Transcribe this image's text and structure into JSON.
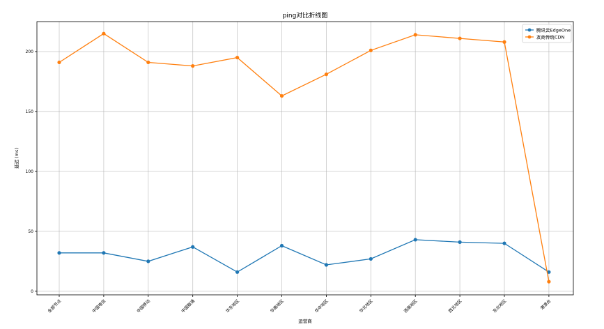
{
  "chart_data": {
    "type": "line",
    "title": "ping对比折线图",
    "xlabel": "运营商",
    "ylabel": "延迟 (ms)",
    "categories": [
      "全部节点",
      "中国电信",
      "中国移动",
      "中国联通",
      "华东地区",
      "华南地区",
      "华中地区",
      "华北地区",
      "西南地区",
      "西北地区",
      "东北地区",
      "港澳台"
    ],
    "series": [
      {
        "name": "腾讯云EdgeOne",
        "color": "#1f77b4",
        "values": [
          32,
          32,
          25,
          37,
          16,
          38,
          22,
          27,
          43,
          41,
          40,
          16
        ]
      },
      {
        "name": "友商传统CDN",
        "color": "#ff7f0e",
        "values": [
          191,
          215,
          191,
          188,
          195,
          163,
          181,
          201,
          214,
          211,
          208,
          8
        ]
      }
    ],
    "ylim": [
      -3,
      225
    ],
    "yticks": [
      0,
      50,
      100,
      150,
      200
    ],
    "grid": true,
    "legend_position": "top-right"
  }
}
